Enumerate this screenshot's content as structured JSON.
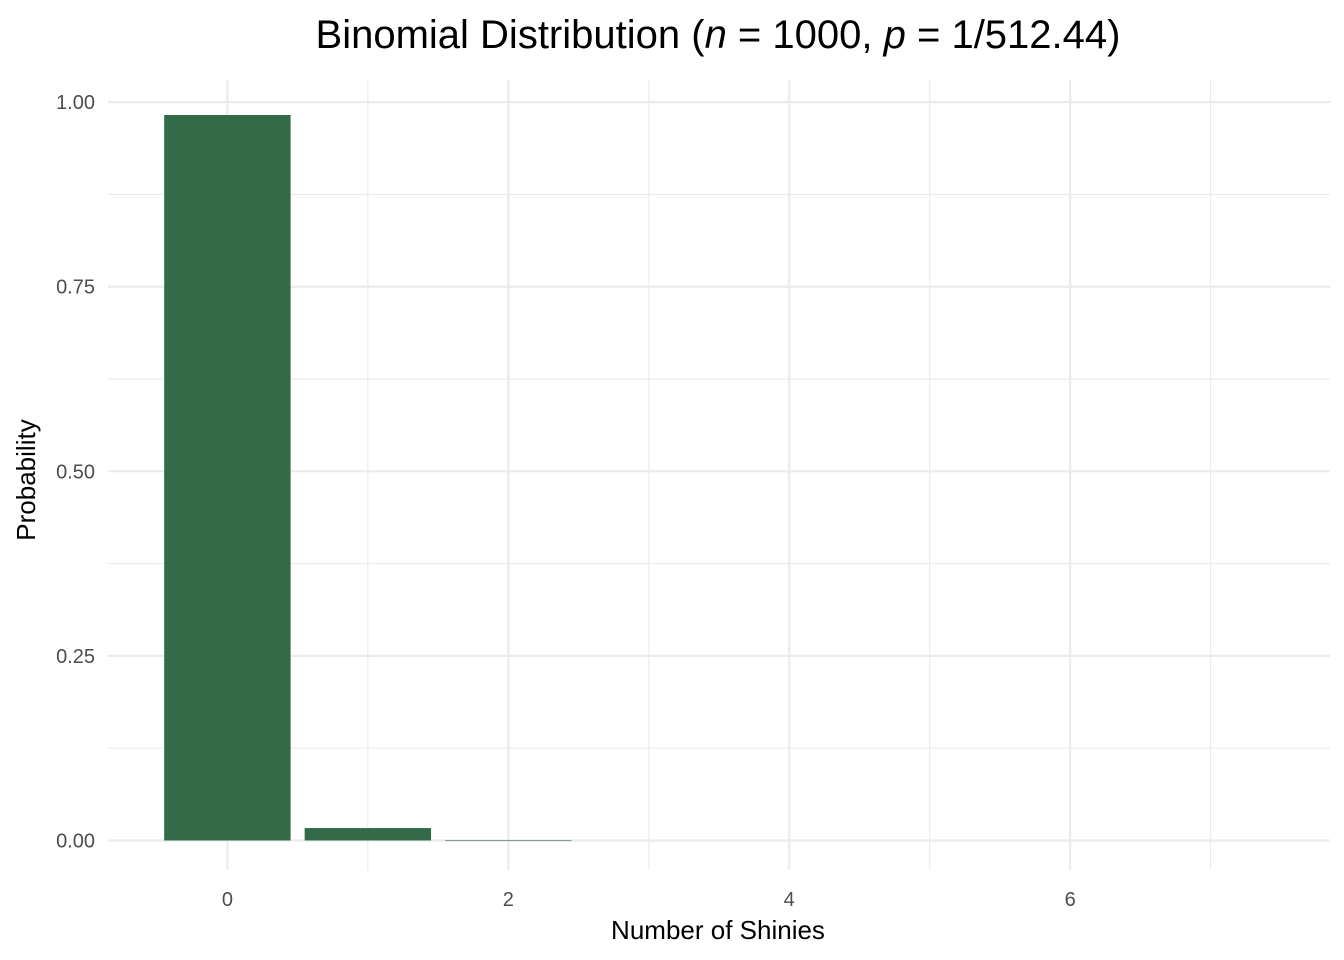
{
  "chart_data": {
    "type": "bar",
    "title": {
      "prefix": "Binomial Distribution (",
      "n_symbol": "n",
      "n_part": " = 1000, ",
      "p_symbol": "p",
      "p_part": " = 1/512.44)"
    },
    "xlabel": "Number of Shinies",
    "ylabel": "Probability",
    "x": [
      0,
      1,
      2,
      3,
      4,
      5,
      6,
      7
    ],
    "values": [
      0.9826,
      0.0168,
      0.0005,
      0.0,
      0.0,
      0.0,
      0.0,
      0.0
    ],
    "xlim": [
      -0.85,
      7.85
    ],
    "ylim": [
      -0.04,
      1.03
    ],
    "x_ticks": [
      0,
      2,
      4,
      6
    ],
    "x_tick_labels": [
      "0",
      "2",
      "4",
      "6"
    ],
    "y_ticks": [
      0,
      0.25,
      0.5,
      0.75,
      1.0
    ],
    "y_tick_labels": [
      "0.00",
      "0.25",
      "0.50",
      "0.75",
      "1.00"
    ],
    "grid": true,
    "bar_color": "#336b48"
  }
}
